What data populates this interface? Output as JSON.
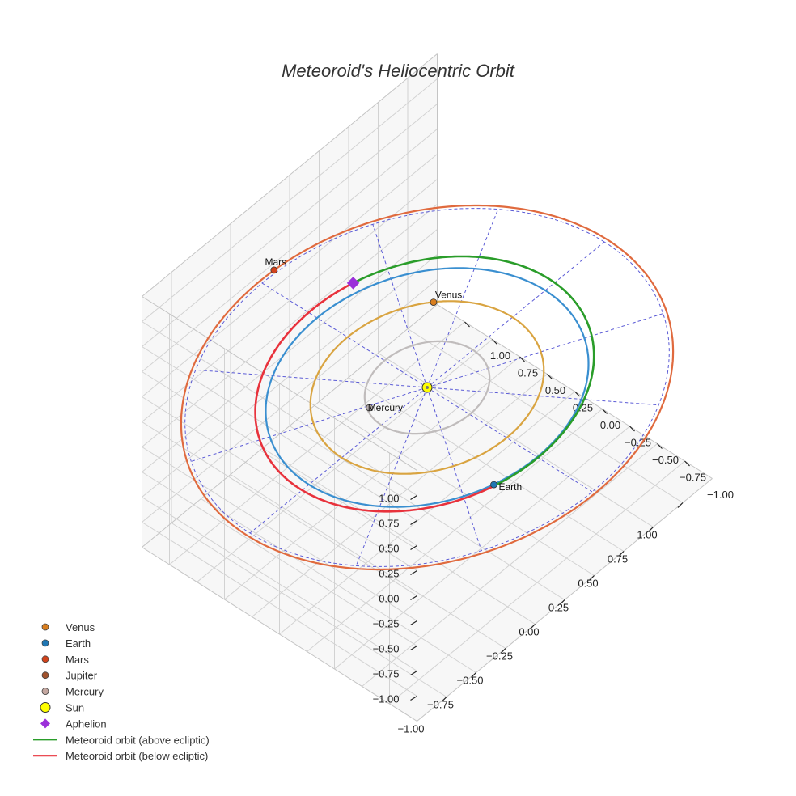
{
  "chart_data": {
    "type": "3d-orbit",
    "title": "Meteoroid's Heliocentric Orbit",
    "axis_range": [
      -1.25,
      1.25
    ],
    "ticks": [
      -1.0,
      -0.75,
      -0.5,
      -0.25,
      0.0,
      0.25,
      0.5,
      0.75,
      1.0
    ],
    "x_tick_labels": [
      "−1.00",
      "−0.75",
      "−0.50",
      "−0.25",
      "0.00",
      "0.25",
      "0.50",
      "0.75",
      "1.00"
    ],
    "y_tick_labels": [
      "−1.00",
      "−0.75",
      "−0.50",
      "−0.25",
      "0.00",
      "0.25",
      "0.50",
      "0.75",
      "1.00"
    ],
    "z_tick_labels": [
      "−1.00",
      "−0.75",
      "−0.50",
      "−0.25",
      "0.00",
      "0.25",
      "0.50",
      "0.75",
      "1.00"
    ],
    "grid": true,
    "ecliptic_reference": {
      "radii": [
        1.0,
        1.5
      ],
      "spokes": 12,
      "style": "dashed",
      "color": "#5b5bd6"
    },
    "planet_orbits": [
      {
        "name": "Mercury",
        "radius": 0.387,
        "color": "#c0bcbc"
      },
      {
        "name": "Venus",
        "radius": 0.723,
        "color": "#d9a441"
      },
      {
        "name": "Earth",
        "radius": 1.0,
        "color": "#3a8fd0"
      },
      {
        "name": "Mars",
        "radius": 1.524,
        "color": "#e06a3e"
      }
    ],
    "planets": [
      {
        "name": "Venus",
        "x": 0.52,
        "y": 0.5,
        "z": 0.0,
        "color": "#d97e1e",
        "label": "Venus"
      },
      {
        "name": "Earth",
        "x": -0.32,
        "y": -0.95,
        "z": 0.0,
        "color": "#1f77b4",
        "label": "Earth"
      },
      {
        "name": "Mars",
        "x": 0.12,
        "y": 1.52,
        "z": 0.0,
        "color": "#d2431c",
        "label": "Mars"
      },
      {
        "name": "Mercury",
        "x": -0.33,
        "y": 0.17,
        "z": 0.0,
        "color": "#b8aeae",
        "label": "Mercury"
      }
    ],
    "sun": {
      "x": 0,
      "y": 0,
      "z": 0,
      "color": "#ffff00",
      "label": "Sun"
    },
    "meteoroid_orbit": {
      "a": 1.05,
      "e": 0.035,
      "perihelion_angle_deg": 252,
      "inclination_deg": 2,
      "above_color": "#2a9d2a",
      "below_color": "#e8323c"
    },
    "aphelion": {
      "color": "#9b30d9",
      "label": "Aphelion"
    },
    "legend": [
      {
        "label": "Venus",
        "marker": "circle",
        "color": "#d97e1e"
      },
      {
        "label": "Earth",
        "marker": "circle",
        "color": "#1f77b4"
      },
      {
        "label": "Mars",
        "marker": "circle",
        "color": "#d2431c"
      },
      {
        "label": "Jupiter",
        "marker": "circle",
        "color": "#a0522d"
      },
      {
        "label": "Mercury",
        "marker": "circle",
        "color": "#c4a7a0"
      },
      {
        "label": "Sun",
        "marker": "sun",
        "color": "#ffff00"
      },
      {
        "label": "Aphelion",
        "marker": "diamond",
        "color": "#9b30d9"
      },
      {
        "label": "Meteoroid orbit (above ecliptic)",
        "marker": "line",
        "color": "#2a9d2a"
      },
      {
        "label": "Meteoroid orbit (below ecliptic)",
        "marker": "line",
        "color": "#e8323c"
      }
    ]
  }
}
